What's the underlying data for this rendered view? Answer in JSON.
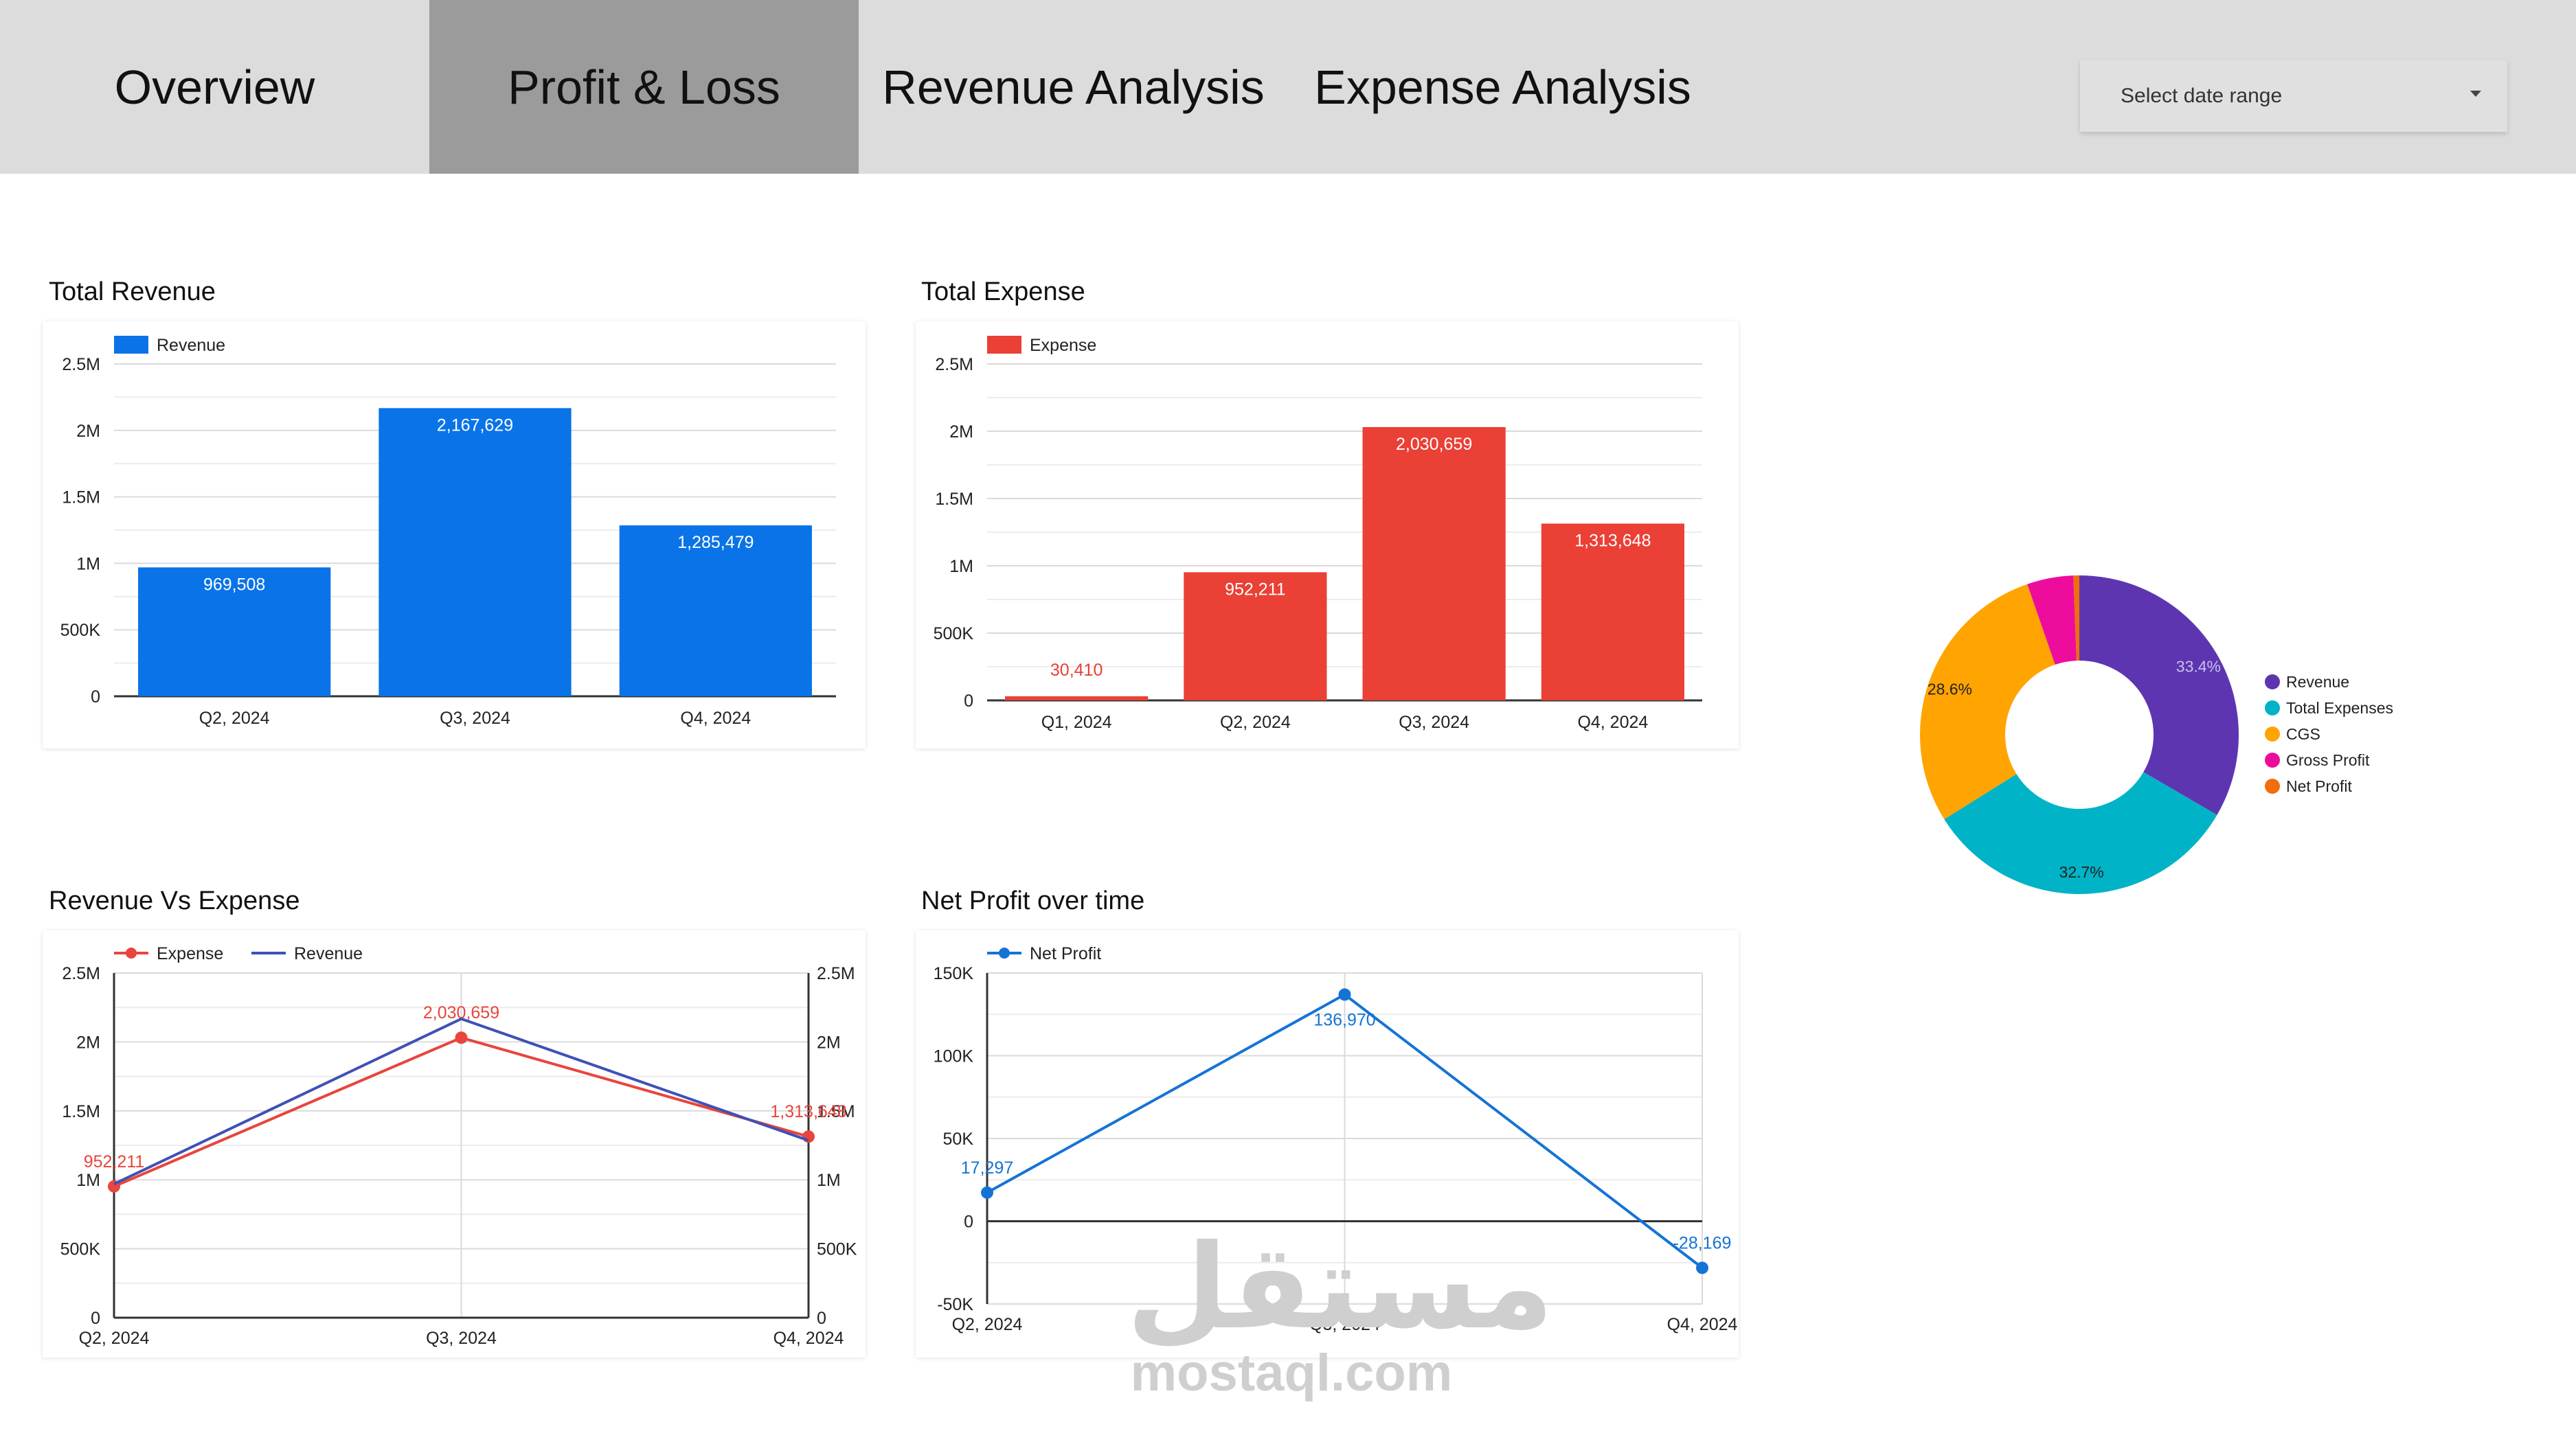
{
  "nav": {
    "tabs": [
      {
        "label": "Overview",
        "active": false
      },
      {
        "label": "Profit & Loss",
        "active": true
      },
      {
        "label": "Revenue Analysis",
        "active": false
      },
      {
        "label": "Expense Analysis",
        "active": false
      }
    ],
    "date_range_placeholder": "Select date range"
  },
  "charts": {
    "total_revenue": {
      "title": "Total Revenue"
    },
    "total_expense": {
      "title": "Total Expense"
    },
    "rev_vs_exp": {
      "title": "Revenue Vs Expense"
    },
    "net_profit": {
      "title": "Net Profit over time"
    }
  },
  "watermark": {
    "arabic": "مستقل",
    "latin": "mostaql.com"
  },
  "chart_data": [
    {
      "id": "total_revenue",
      "type": "bar",
      "title": "Total Revenue",
      "categories": [
        "Q2, 2024",
        "Q3, 2024",
        "Q4, 2024"
      ],
      "series": [
        {
          "name": "Revenue",
          "values": [
            969508,
            2167629,
            1285479
          ],
          "labels": [
            "969,508",
            "2,167,629",
            "1,285,479"
          ],
          "color": "#0a73e8"
        }
      ],
      "ylim": [
        0,
        2500000
      ],
      "yticks": [
        "0",
        "500K",
        "1M",
        "1.5M",
        "2M",
        "2.5M"
      ],
      "legend": "top-left",
      "grid": true
    },
    {
      "id": "total_expense",
      "type": "bar",
      "title": "Total Expense",
      "categories": [
        "Q1, 2024",
        "Q2, 2024",
        "Q3, 2024",
        "Q4, 2024"
      ],
      "series": [
        {
          "name": "Expense",
          "values": [
            30410,
            952211,
            2030659,
            1313648
          ],
          "labels": [
            "30,410",
            "952,211",
            "2,030,659",
            "1,313,648"
          ],
          "color": "#ea4035"
        }
      ],
      "ylim": [
        0,
        2500000
      ],
      "yticks": [
        "0",
        "500K",
        "1M",
        "1.5M",
        "2M",
        "2.5M"
      ],
      "legend": "top-left",
      "grid": true
    },
    {
      "id": "rev_vs_exp",
      "type": "line",
      "title": "Revenue Vs Expense",
      "categories": [
        "Q2, 2024",
        "Q3, 2024",
        "Q4, 2024"
      ],
      "series": [
        {
          "name": "Expense",
          "values": [
            952211,
            2030659,
            1313648
          ],
          "labels": [
            "952,211",
            "2,030,659",
            "1,313,648"
          ],
          "color": "#e8453c",
          "markers": true
        },
        {
          "name": "Revenue",
          "values": [
            969508,
            2167629,
            1285479
          ],
          "color": "#3f51b5",
          "markers": false
        }
      ],
      "ylim": [
        0,
        2500000
      ],
      "yticks": [
        "0",
        "500K",
        "1M",
        "1.5M",
        "2M",
        "2.5M"
      ],
      "dual_axis": true,
      "legend": "top-left",
      "grid": true
    },
    {
      "id": "net_profit",
      "type": "line",
      "title": "Net Profit over time",
      "categories": [
        "Q2, 2024",
        "Q3, 2024",
        "Q4, 2024"
      ],
      "series": [
        {
          "name": "Net Profit",
          "values": [
            17297,
            136970,
            -28169
          ],
          "labels": [
            "17,297",
            "136,970",
            "-28,169"
          ],
          "color": "#1573d6",
          "markers": true
        }
      ],
      "ylim": [
        -50000,
        150000
      ],
      "yticks": [
        "-50K",
        "0",
        "50K",
        "100K",
        "150K"
      ],
      "legend": "top-left",
      "grid": true
    },
    {
      "id": "composition",
      "type": "pie",
      "donut": true,
      "slices": [
        {
          "name": "Revenue",
          "value": 33.4,
          "label": "33.4%",
          "color": "#5e35b1"
        },
        {
          "name": "Total Expenses",
          "value": 32.7,
          "label": "32.7%",
          "color": "#00b3c7"
        },
        {
          "name": "CGS",
          "value": 28.6,
          "label": "28.6%",
          "color": "#ffa400"
        },
        {
          "name": "Gross Profit",
          "value": 4.7,
          "color": "#ee0c9d"
        },
        {
          "name": "Net Profit",
          "value": 0.6,
          "color": "#f26d0d"
        }
      ],
      "legend": "right"
    }
  ]
}
